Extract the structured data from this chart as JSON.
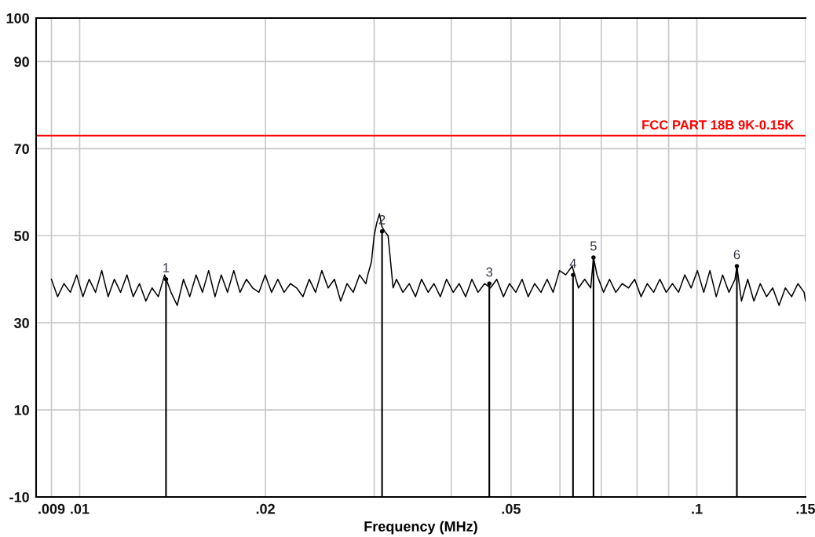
{
  "chart_data": {
    "type": "line",
    "xlabel": "Frequency (MHz)",
    "log": "x",
    "xlim": [
      0.0085,
      0.15
    ],
    "xticks": [
      {
        "value": 0.009,
        "label": ".009"
      },
      {
        "value": 0.01,
        "label": ".01"
      },
      {
        "value": 0.02,
        "label": ".02"
      },
      {
        "value": 0.03,
        "label": null
      },
      {
        "value": 0.04,
        "label": null
      },
      {
        "value": 0.05,
        "label": ".05"
      },
      {
        "value": 0.06,
        "label": null
      },
      {
        "value": 0.07,
        "label": null
      },
      {
        "value": 0.08,
        "label": null
      },
      {
        "value": 0.09,
        "label": null
      },
      {
        "value": 0.1,
        "label": ".1"
      },
      {
        "value": 0.15,
        "label": ".15"
      }
    ],
    "ylim": [
      -10,
      100
    ],
    "yticks": [
      -10,
      10,
      30,
      50,
      70,
      90,
      100
    ],
    "grid": true,
    "marker": "none",
    "line_style": "solid",
    "annotations": [
      {
        "text": "1",
        "x": 0.0138,
        "y": 40
      },
      {
        "text": "2",
        "x": 0.0309,
        "y": 51
      },
      {
        "text": "3",
        "x": 0.0461,
        "y": 39
      },
      {
        "text": "4",
        "x": 0.063,
        "y": 41
      },
      {
        "text": "5",
        "x": 0.068,
        "y": 45
      },
      {
        "text": "6",
        "x": 0.1161,
        "y": 43
      }
    ],
    "ref_lines": [
      {
        "axis": "y",
        "value": 73,
        "label": "FCC PART 18B 9K-0.15K",
        "color": "#ff0000"
      }
    ],
    "series": [
      {
        "color": "#000000",
        "x": [
          0.009,
          0.00921,
          0.00943,
          0.00966,
          0.00989,
          0.01012,
          0.01036,
          0.01061,
          0.01086,
          0.01112,
          0.01138,
          0.01165,
          0.01193,
          0.01221,
          0.0125,
          0.0128,
          0.0131,
          0.01341,
          0.01373,
          0.01406,
          0.01439,
          0.01473,
          0.01508,
          0.01544,
          0.01581,
          0.01618,
          0.01657,
          0.01696,
          0.01736,
          0.01777,
          0.01819,
          0.01863,
          0.01907,
          0.01952,
          0.01998,
          0.02046,
          0.02094,
          0.02144,
          0.02195,
          0.02247,
          0.023,
          0.02355,
          0.02411,
          0.02468,
          0.02527,
          0.02587,
          0.02648,
          0.02711,
          0.02775,
          0.02841,
          0.02908,
          0.0293,
          0.0297,
          0.03,
          0.0303,
          0.0306,
          0.0309,
          0.0312,
          0.0316,
          0.0319,
          0.0322,
          0.0326,
          0.0334,
          0.0342,
          0.035,
          0.0358,
          0.0367,
          0.0375,
          0.0384,
          0.0393,
          0.0403,
          0.0412,
          0.0422,
          0.0432,
          0.0442,
          0.0453,
          0.0463,
          0.0474,
          0.0486,
          0.0497,
          0.0509,
          0.0521,
          0.0533,
          0.0546,
          0.0559,
          0.0572,
          0.0585,
          0.0599,
          0.0613,
          0.0628,
          0.0643,
          0.0658,
          0.0673,
          0.068,
          0.0689,
          0.0706,
          0.0722,
          0.0739,
          0.0757,
          0.0775,
          0.0793,
          0.0812,
          0.0831,
          0.0851,
          0.0871,
          0.0892,
          0.0913,
          0.0934,
          0.0956,
          0.0979,
          0.1002,
          0.1026,
          0.105,
          0.1075,
          0.1101,
          0.1127,
          0.1153,
          0.1161,
          0.1181,
          0.1209,
          0.1237,
          0.1267,
          0.1297,
          0.1327,
          0.1359,
          0.1391,
          0.1424,
          0.1458,
          0.1492,
          0.15
        ],
        "values": [
          40,
          36,
          39,
          37,
          41,
          36,
          40,
          37,
          42,
          36,
          40,
          37,
          41,
          36,
          39,
          35,
          38,
          36,
          41,
          37,
          34,
          40,
          36,
          41,
          37,
          42,
          36,
          41,
          37,
          42,
          37,
          40,
          38,
          37,
          41,
          37,
          40,
          37,
          39,
          38,
          36,
          40,
          37,
          42,
          38,
          40,
          35,
          39,
          37,
          41,
          39,
          41,
          44,
          50,
          53,
          55,
          52,
          51,
          50,
          44,
          38,
          40,
          37,
          39,
          36,
          40,
          37,
          39,
          36,
          40,
          37,
          39,
          36,
          40,
          37,
          39,
          38,
          40,
          36,
          39,
          37,
          40,
          36,
          39,
          37,
          40,
          37,
          42,
          41,
          43,
          38,
          40,
          38,
          45,
          41,
          37,
          40,
          37,
          39,
          38,
          40,
          36,
          39,
          37,
          40,
          37,
          39,
          37,
          41,
          38,
          42,
          37,
          42,
          36,
          41,
          37,
          40,
          43,
          35,
          40,
          35,
          39,
          36,
          38,
          34,
          38,
          36,
          39,
          37,
          35
        ]
      },
      {
        "type": "lollipop",
        "color": "#000000",
        "marker": "circle",
        "x": [
          0.0138,
          0.0309,
          0.0461,
          0.063,
          0.068,
          0.1161
        ],
        "values": [
          40,
          51,
          39,
          41,
          45,
          43
        ]
      }
    ]
  }
}
